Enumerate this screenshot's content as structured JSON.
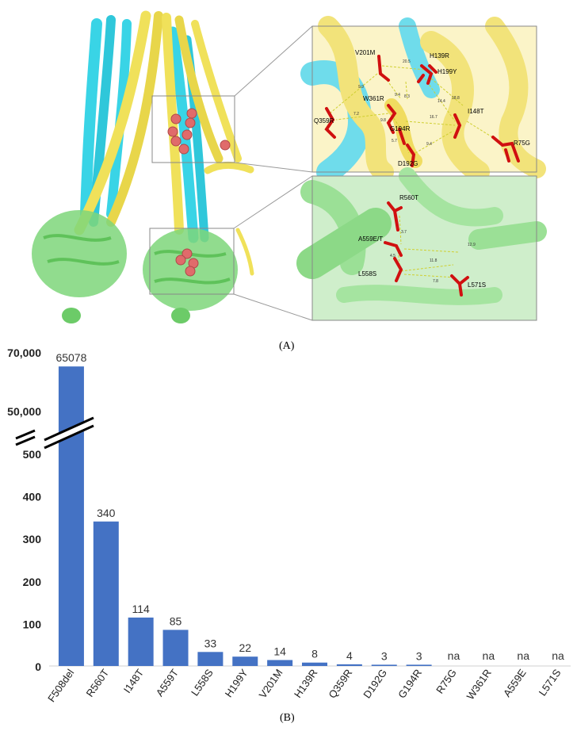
{
  "figure": {
    "panel_a_label": "(A)",
    "panel_b_label": "(B)"
  },
  "panel_a": {
    "upper_inset_residues": [
      "V201M",
      "H139R",
      "H199Y",
      "W361R",
      "Q359R",
      "I148T",
      "G194R",
      "R75G",
      "D192G"
    ],
    "upper_inset_distances": [
      "20.5",
      "9.9",
      "9.4",
      "8.3",
      "7.2",
      "9.8",
      "14.4",
      "18.8",
      "16.7",
      "5.7",
      "9.4"
    ],
    "lower_inset_residues": [
      "R560T",
      "A559E/T",
      "L558S",
      "L571S"
    ],
    "lower_inset_distances": [
      "3.7",
      "12.9",
      "4.5",
      "11.8",
      "7.8"
    ],
    "colors": {
      "nbd_green": "#7ed67a",
      "tmd_cyan": "#39d4e6",
      "tmd_yellow": "#f0e15a",
      "sphere": "#e06b6b",
      "residue_red": "#d01010"
    }
  },
  "chart_data": {
    "type": "bar",
    "categories": [
      "F508del",
      "R560T",
      "I148T",
      "A559T",
      "L558S",
      "H199Y",
      "V201M",
      "H139R",
      "Q359R",
      "D192G",
      "G194R",
      "R75G",
      "W361R",
      "A559E",
      "L571S"
    ],
    "values": [
      65078,
      340,
      114,
      85,
      33,
      22,
      14,
      8,
      4,
      3,
      3,
      null,
      null,
      null,
      null
    ],
    "data_labels": [
      "65078",
      "340",
      "114",
      "85",
      "33",
      "22",
      "14",
      "8",
      "4",
      "3",
      "3",
      "na",
      "na",
      "na",
      "na"
    ],
    "yticks": [
      "0",
      "100",
      "200",
      "300",
      "400",
      "500",
      "50,000",
      "70,000"
    ],
    "ylim_lower": [
      0,
      500
    ],
    "ylim_upper": [
      50000,
      70000
    ],
    "axis_break": true,
    "bar_color": "#4472c4"
  }
}
